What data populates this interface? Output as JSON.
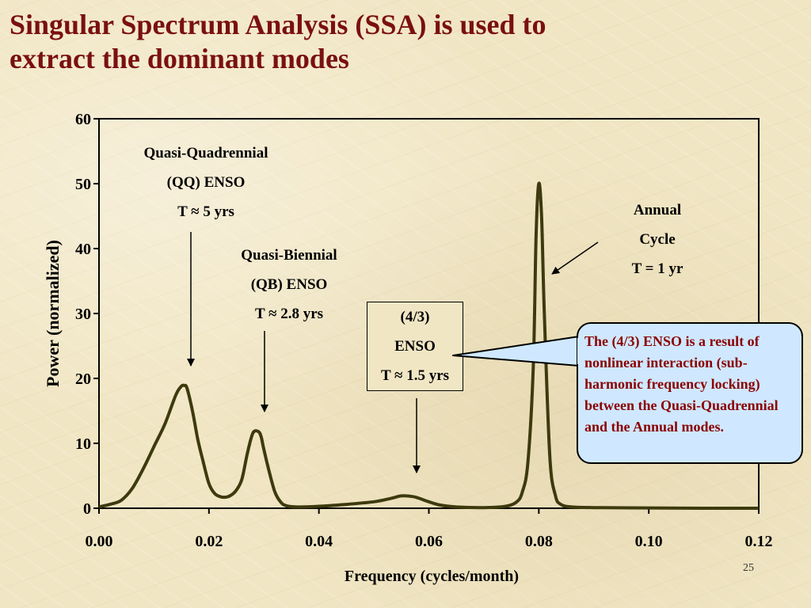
{
  "slide": {
    "title_line1": "Singular Spectrum Analysis (SSA) is used to",
    "title_line2": "extract the dominant modes",
    "page_number": "25"
  },
  "chart_data": {
    "type": "line",
    "xlabel": "Frequency (cycles/month)",
    "ylabel": "Power (normalized)",
    "xlim": [
      0,
      0.12
    ],
    "ylim": [
      0,
      60
    ],
    "x_ticks": [
      "0.00",
      "0.02",
      "0.04",
      "0.06",
      "0.08",
      "0.10",
      "0.12"
    ],
    "y_ticks": [
      "0",
      "10",
      "20",
      "30",
      "40",
      "50",
      "60"
    ],
    "grid": false,
    "line_color": "#3d3a0e",
    "series": [
      {
        "x": [
          0.0,
          0.002,
          0.004,
          0.006,
          0.008,
          0.01,
          0.012,
          0.014,
          0.015,
          0.0155,
          0.016,
          0.017,
          0.018,
          0.019,
          0.02,
          0.021,
          0.022,
          0.023,
          0.024,
          0.025,
          0.026,
          0.027,
          0.028,
          0.029,
          0.0295,
          0.03,
          0.031,
          0.032,
          0.033,
          0.034,
          0.036,
          0.04,
          0.045,
          0.05,
          0.053,
          0.055,
          0.057,
          0.058,
          0.06,
          0.062,
          0.065,
          0.07,
          0.074,
          0.076,
          0.077,
          0.078,
          0.079,
          0.0795,
          0.08,
          0.0805,
          0.081,
          0.082,
          0.083,
          0.084,
          0.086,
          0.09,
          0.1,
          0.11,
          0.12
        ],
        "y": [
          0.2,
          0.6,
          1.2,
          3.0,
          6.0,
          9.5,
          13.0,
          17.5,
          18.8,
          18.9,
          18.5,
          15.0,
          10.5,
          7.0,
          3.8,
          2.3,
          1.8,
          1.7,
          2.0,
          2.8,
          4.5,
          8.5,
          11.6,
          11.8,
          11.0,
          9.0,
          5.5,
          2.5,
          1.0,
          0.4,
          0.2,
          0.3,
          0.6,
          1.0,
          1.5,
          1.9,
          1.8,
          1.6,
          1.0,
          0.5,
          0.2,
          0.1,
          0.3,
          1.0,
          2.5,
          7.0,
          22.0,
          42.0,
          50.0,
          45.0,
          30.0,
          8.0,
          2.0,
          0.6,
          0.2,
          0.1,
          0.05,
          0.0,
          0.0
        ]
      }
    ],
    "annotations": {
      "qq_line1": "Quasi-Quadrennial",
      "qq_line2": "(QQ) ENSO",
      "qq_line3": "T ≈ 5 yrs",
      "qb_line1": "Quasi-Biennial",
      "qb_line2": "(QB) ENSO",
      "qb_line3": "T ≈ 2.8 yrs",
      "e43_line1": "(4/3)",
      "e43_line2": "ENSO",
      "e43_line3": "T ≈ 1.5 yrs",
      "annual_line1": "Annual",
      "annual_line2": "Cycle",
      "annual_line3": "T = 1 yr",
      "callout": "The (4/3) ENSO is a result of nonlinear interaction (sub-harmonic frequency locking) between the Quasi-Quadrennial and the Annual modes."
    }
  },
  "colors": {
    "title": "#7a1010",
    "callout_bg": "#cfe8ff",
    "callout_text": "#8b0000"
  }
}
